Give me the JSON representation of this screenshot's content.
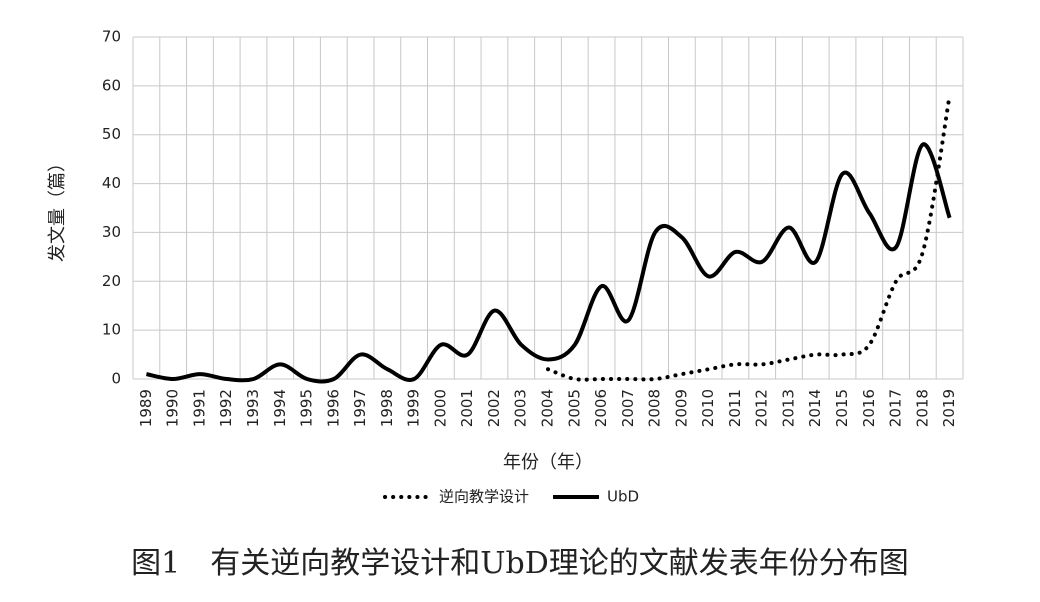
{
  "chart_data": {
    "type": "line",
    "caption": "图1　有关逆向教学设计和UbD理论的文献发表年份分布图",
    "x_label": "年份（年）",
    "y_label": "发文量（篇）",
    "categories": [
      "1989",
      "1990",
      "1991",
      "1992",
      "1993",
      "1994",
      "1995",
      "1996",
      "1997",
      "1998",
      "1999",
      "2000",
      "2001",
      "2002",
      "2003",
      "2004",
      "2005",
      "2006",
      "2007",
      "2008",
      "2009",
      "2010",
      "2011",
      "2012",
      "2013",
      "2014",
      "2015",
      "2016",
      "2017",
      "2018",
      "2019"
    ],
    "series": [
      {
        "name": "逆向教学设计",
        "color": "#000000",
        "style": "dotted",
        "values": [
          null,
          null,
          null,
          null,
          null,
          null,
          null,
          null,
          null,
          null,
          null,
          null,
          null,
          null,
          null,
          2,
          0,
          0,
          0,
          0,
          1,
          2,
          3,
          3,
          4,
          5,
          5,
          7,
          20,
          26,
          58
        ]
      },
      {
        "name": "UbD",
        "color": "#000000",
        "style": "solid",
        "values": [
          1,
          0,
          1,
          0,
          0,
          3,
          0,
          0,
          5,
          2,
          0,
          7,
          5,
          14,
          7,
          4,
          7,
          19,
          12,
          30,
          29,
          21,
          26,
          24,
          31,
          24,
          42,
          34,
          27,
          48,
          33
        ]
      }
    ],
    "ylim": [
      0,
      70
    ],
    "yticks": [
      0,
      10,
      20,
      30,
      40,
      50,
      60,
      70
    ],
    "grid": true,
    "smooth": true,
    "legend": "bottom"
  }
}
